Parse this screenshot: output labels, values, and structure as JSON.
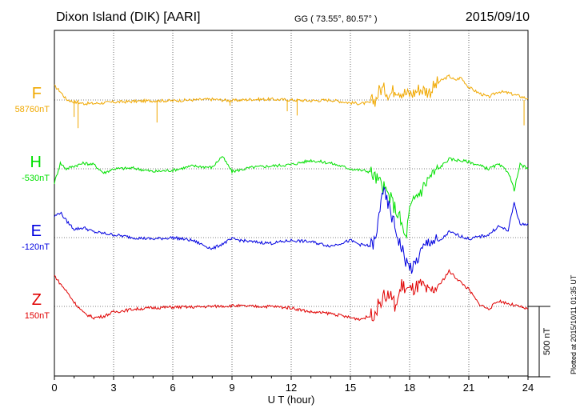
{
  "header": {
    "station": "Dixon Island (DIK)  [AARI]",
    "coords": "GG ( 73.55°,  80.57° )",
    "date": "2015/09/10"
  },
  "footer": {
    "plotted": "Plotted at 2015/10/11 01:35 UT"
  },
  "chart_data": {
    "type": "line",
    "xlabel": "U T (hour)",
    "xlim": [
      0,
      24
    ],
    "xticks": [
      0,
      3,
      6,
      9,
      12,
      15,
      18,
      21,
      24
    ],
    "scale_bar": "500 nT",
    "series": [
      {
        "name": "F",
        "baseline": "58760nT",
        "color": "#f0a800",
        "x": [
          0,
          0.3,
          0.6,
          1,
          1.5,
          2,
          3,
          4,
          5,
          6,
          7,
          8,
          9,
          10,
          11,
          12,
          13,
          14,
          15,
          15.5,
          16,
          16.3,
          16.5,
          16.8,
          17,
          17.3,
          17.6,
          17.9,
          18.2,
          18.5,
          19,
          19.5,
          20,
          20.3,
          20.6,
          21,
          21.5,
          22,
          22.5,
          23,
          23.5,
          24
        ],
        "y": [
          100,
          60,
          5,
          -15,
          -25,
          -25,
          -15,
          -10,
          -5,
          -5,
          0,
          5,
          -5,
          5,
          5,
          0,
          -5,
          0,
          -20,
          -25,
          -20,
          10,
          80,
          70,
          40,
          85,
          60,
          40,
          50,
          80,
          60,
          130,
          170,
          140,
          160,
          90,
          50,
          20,
          60,
          50,
          30,
          10
        ],
        "spikes": [
          [
            1,
            -120
          ],
          [
            1.2,
            -200
          ],
          [
            5.2,
            -160
          ],
          [
            8.9,
            -40
          ],
          [
            11.8,
            -80
          ],
          [
            12.3,
            -110
          ],
          [
            23.8,
            -180
          ]
        ]
      },
      {
        "name": "H",
        "baseline": "-530nT",
        "color": "#00e000",
        "x": [
          0,
          0.3,
          0.6,
          1,
          1.5,
          2,
          2.5,
          3,
          4,
          5,
          6,
          7,
          8,
          8.5,
          9,
          10,
          11,
          12,
          13,
          14,
          15,
          16,
          16.5,
          17,
          17.5,
          17.8,
          18,
          18.3,
          18.6,
          19,
          20,
          21,
          22,
          22.5,
          23,
          23.3,
          23.6,
          24
        ],
        "y": [
          -100,
          40,
          0,
          20,
          40,
          30,
          -30,
          0,
          5,
          -20,
          -10,
          20,
          10,
          90,
          -20,
          10,
          20,
          30,
          60,
          40,
          0,
          -20,
          -100,
          -200,
          -350,
          -500,
          -300,
          -200,
          -150,
          -60,
          70,
          50,
          0,
          30,
          -20,
          -150,
          30,
          0
        ],
        "spikes": []
      },
      {
        "name": "E",
        "baseline": "-120nT",
        "color": "#0000e0",
        "x": [
          0,
          0.3,
          0.6,
          1,
          1.5,
          2,
          2.5,
          3,
          4,
          5,
          6,
          7,
          8,
          9,
          10,
          11,
          12,
          13,
          14,
          15,
          15.5,
          16,
          16.3,
          16.6,
          17,
          17.3,
          17.6,
          17.9,
          18.2,
          18.5,
          19,
          19.5,
          20,
          21,
          22,
          22.5,
          23,
          23.3,
          23.6,
          24
        ],
        "y": [
          150,
          180,
          120,
          60,
          70,
          40,
          30,
          20,
          0,
          -10,
          0,
          -20,
          -80,
          -10,
          -30,
          -40,
          -20,
          -30,
          -60,
          -20,
          -50,
          -60,
          -20,
          340,
          200,
          50,
          -80,
          -200,
          -220,
          -120,
          -20,
          -30,
          40,
          -10,
          20,
          80,
          50,
          250,
          90,
          100
        ],
        "spikes": []
      },
      {
        "name": "Z",
        "baseline": "150nT",
        "color": "#e00000",
        "x": [
          0,
          0.3,
          0.6,
          1,
          1.5,
          2,
          2.5,
          3,
          4,
          5,
          6,
          7,
          8,
          9,
          10,
          11,
          12,
          13,
          14,
          15,
          15.5,
          16,
          16.3,
          16.6,
          17,
          17.3,
          17.6,
          18,
          18.3,
          18.6,
          19,
          19.5,
          20,
          20.3,
          21,
          21.5,
          22,
          22.5,
          23,
          23.5,
          24
        ],
        "y": [
          220,
          160,
          110,
          30,
          -50,
          -80,
          -70,
          -40,
          -20,
          -10,
          -5,
          -5,
          0,
          5,
          0,
          0,
          -10,
          -40,
          -50,
          -80,
          -90,
          -70,
          -30,
          60,
          80,
          0,
          150,
          110,
          130,
          150,
          90,
          150,
          250,
          210,
          120,
          20,
          -20,
          40,
          20,
          0,
          -20
        ],
        "spikes": []
      }
    ]
  }
}
